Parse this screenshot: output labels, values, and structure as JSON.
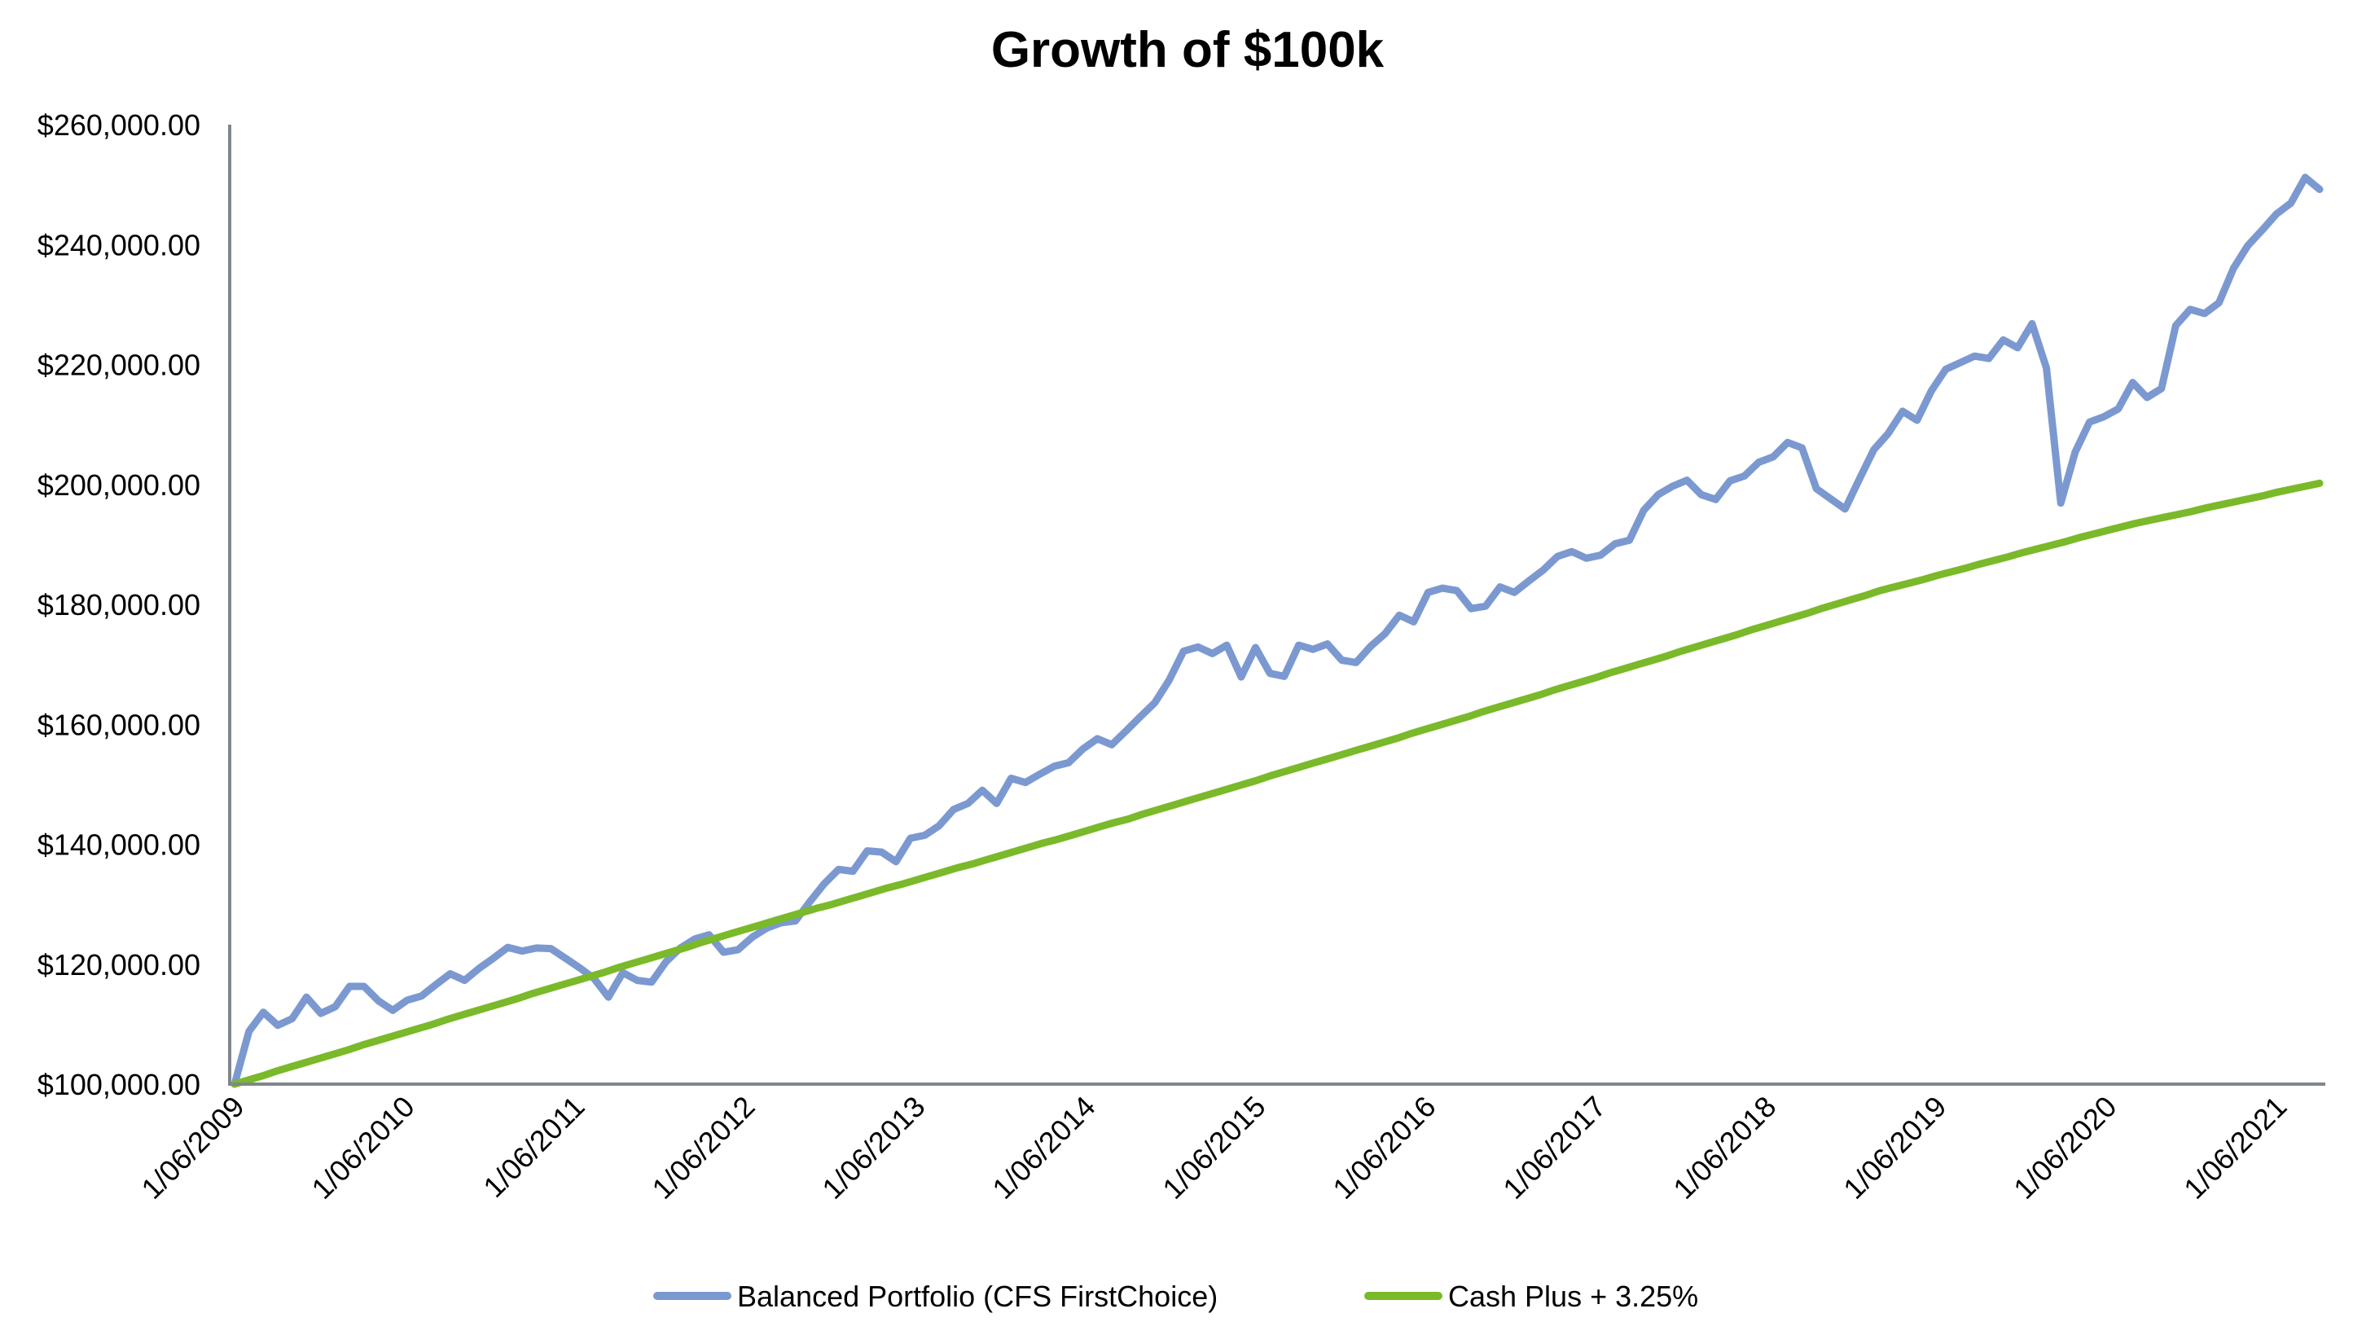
{
  "chart_data": {
    "type": "line",
    "title": "Growth of $100k",
    "xlabel": "",
    "ylabel": "",
    "ylim": [
      100000,
      260000
    ],
    "y_ticks": [
      "$100,000.00",
      "$120,000.00",
      "$140,000.00",
      "$160,000.00",
      "$180,000.00",
      "$200,000.00",
      "$220,000.00",
      "$240,000.00",
      "$260,000.00"
    ],
    "y_tick_values": [
      100000,
      120000,
      140000,
      160000,
      180000,
      200000,
      220000,
      240000,
      260000
    ],
    "x_ticks": [
      "1/06/2009",
      "1/06/2010",
      "1/06/2011",
      "1/06/2012",
      "1/06/2013",
      "1/06/2014",
      "1/06/2015",
      "1/06/2016",
      "1/06/2017",
      "1/06/2018",
      "1/06/2019",
      "1/06/2020",
      "1/06/2021"
    ],
    "x_start": "2009-06",
    "x_frequency": "monthly",
    "grid": false,
    "legend_position": "bottom",
    "series": [
      {
        "name": "Balanced Portfolio (CFS FirstChoice)",
        "color": "#7B99D0",
        "values": [
          100000,
          108800,
          112000,
          109800,
          110900,
          114500,
          111800,
          112900,
          116300,
          116300,
          113900,
          112300,
          114000,
          114700,
          116600,
          118400,
          117300,
          119300,
          121000,
          122800,
          122200,
          122700,
          122600,
          121000,
          119400,
          117600,
          114500,
          118600,
          117300,
          117000,
          120400,
          122700,
          124200,
          124900,
          122000,
          122400,
          124500,
          126000,
          126900,
          127200,
          130400,
          133400,
          135800,
          135500,
          138900,
          138700,
          137100,
          141000,
          141500,
          143100,
          145800,
          146800,
          149000,
          146800,
          151000,
          150300,
          151700,
          153000,
          153600,
          155900,
          157600,
          156600,
          158900,
          161300,
          163600,
          167400,
          172200,
          172900,
          171800,
          173200,
          167900,
          172800,
          168500,
          168000,
          173200,
          172500,
          173400,
          170700,
          170300,
          173000,
          175100,
          178200,
          177100,
          182000,
          182700,
          182300,
          179300,
          179700,
          182900,
          182000,
          183900,
          185700,
          188000,
          188800,
          187700,
          188200,
          190100,
          190700,
          195700,
          198300,
          199700,
          200700,
          198300,
          197500,
          200600,
          201400,
          203700,
          204600,
          207000,
          206100,
          199300,
          197600,
          195900,
          200900,
          205800,
          208500,
          212200,
          210700,
          215600,
          219200,
          220300,
          221400,
          221000,
          224100,
          222800,
          226800,
          219400,
          196900,
          205400,
          210400,
          211300,
          212600,
          217000,
          214500,
          216000,
          226500,
          229200,
          228500,
          230300,
          236000,
          239800,
          242400,
          245100,
          246900,
          251200,
          249200
        ]
      },
      {
        "name": "Cash Plus + 3.25%",
        "color": "#7AB929",
        "values": [
          100000,
          100700,
          101400,
          102200,
          102900,
          103600,
          104300,
          105000,
          105700,
          106500,
          107200,
          107900,
          108600,
          109300,
          110000,
          110800,
          111500,
          112200,
          112900,
          113600,
          114300,
          115100,
          115800,
          116500,
          117200,
          117900,
          118600,
          119400,
          120100,
          120800,
          121500,
          122200,
          122900,
          123700,
          124400,
          125100,
          125800,
          126500,
          127200,
          127900,
          128600,
          129300,
          129900,
          130600,
          131300,
          132000,
          132700,
          133300,
          134000,
          134700,
          135400,
          136100,
          136700,
          137400,
          138100,
          138800,
          139500,
          140200,
          140800,
          141500,
          142200,
          142900,
          143600,
          144200,
          145000,
          145700,
          146400,
          147100,
          147800,
          148500,
          149200,
          149900,
          150600,
          151400,
          152100,
          152800,
          153500,
          154200,
          154900,
          155600,
          156300,
          157000,
          157700,
          158500,
          159200,
          159900,
          160600,
          161300,
          162100,
          162800,
          163500,
          164200,
          164900,
          165700,
          166400,
          167100,
          167800,
          168600,
          169300,
          170000,
          170700,
          171400,
          172200,
          172900,
          173600,
          174300,
          175000,
          175800,
          176500,
          177200,
          177900,
          178600,
          179400,
          180100,
          180800,
          181500,
          182300,
          182900,
          183500,
          184100,
          184800,
          185400,
          186000,
          186700,
          187300,
          187900,
          188600,
          189200,
          189800,
          190400,
          191100,
          191700,
          192300,
          192900,
          193500,
          194000,
          194500,
          195000,
          195500,
          196100,
          196600,
          197100,
          197600,
          198100,
          198700,
          199200,
          199700,
          200200
        ]
      }
    ]
  },
  "colors": {
    "axis": "#7F878C"
  }
}
